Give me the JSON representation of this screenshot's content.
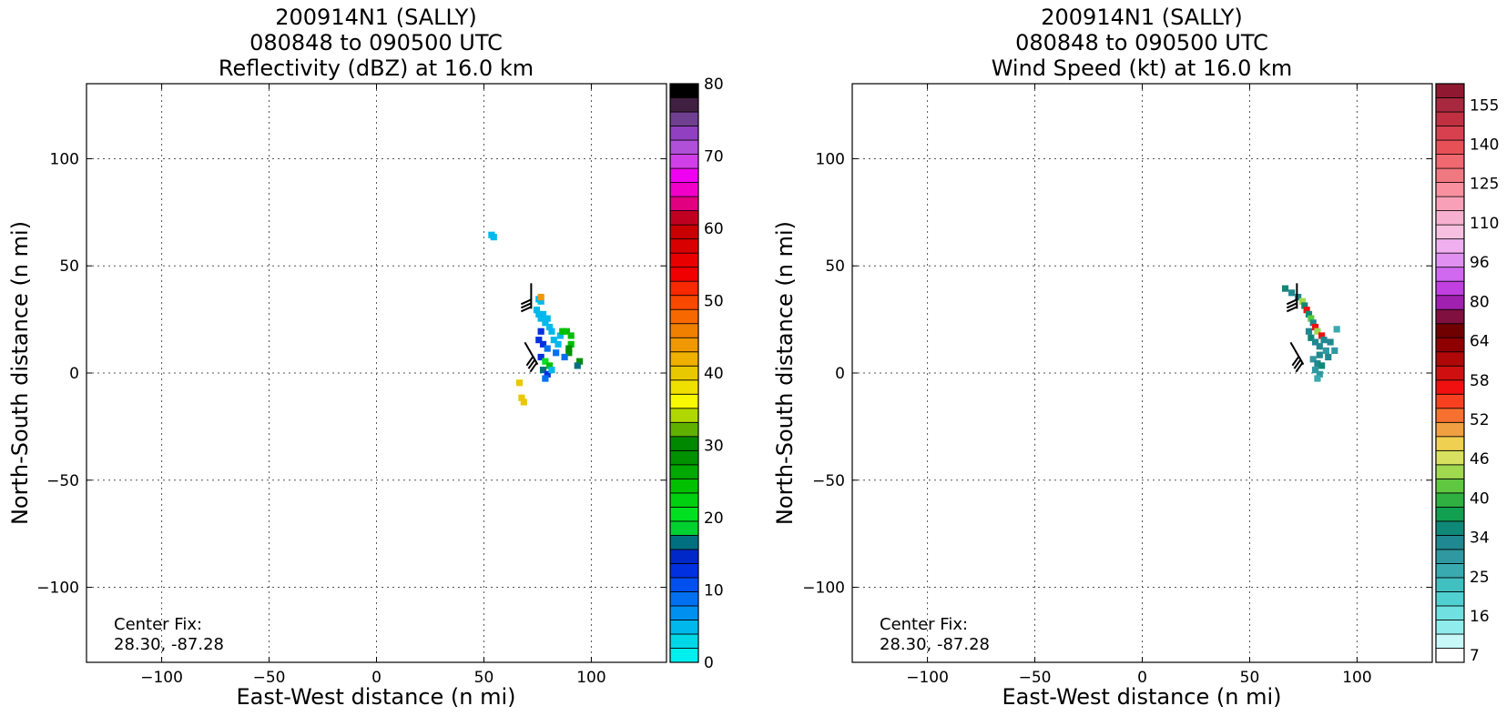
{
  "chart_data": [
    {
      "type": "heatmap",
      "title": [
        "200914N1 (SALLY)",
        "080848 to 090500 UTC",
        "Reflectivity (dBZ) at 16.0 km"
      ],
      "xlabel": "East-West distance (n mi)",
      "ylabel": "North-South distance (n mi)",
      "xlim": [
        -135,
        135
      ],
      "ylim": [
        -135,
        135
      ],
      "xticks": [
        -100,
        -50,
        0,
        50,
        100
      ],
      "yticks": [
        -100,
        -50,
        0,
        50,
        100
      ],
      "grid": true,
      "center_fix_label": "Center Fix:",
      "center_fix_value": "28.30, -87.28",
      "colorbar": {
        "ticks": [
          0,
          10,
          20,
          30,
          40,
          50,
          60,
          70,
          80
        ],
        "colors": [
          "#00f0f0",
          "#00d8e8",
          "#00b8ec",
          "#0090f0",
          "#0070f0",
          "#0050f0",
          "#0030e0",
          "#0028c8",
          "#007080",
          "#00d030",
          "#00e020",
          "#00d010",
          "#00c000",
          "#00a800",
          "#009000",
          "#008800",
          "#60b000",
          "#b0d800",
          "#f8f800",
          "#f0e000",
          "#e8c800",
          "#f0b000",
          "#f09800",
          "#f08000",
          "#f86800",
          "#f84800",
          "#f82800",
          "#f00000",
          "#e80000",
          "#d80000",
          "#c80000",
          "#c00020",
          "#e00080",
          "#f000c8",
          "#f000f0",
          "#d040e8",
          "#b050d8",
          "#9040c0",
          "#704090",
          "#402040",
          "#000000"
        ]
      },
      "pixels": [
        {
          "x": 53,
          "y": 65,
          "v": 2
        },
        {
          "x": 54,
          "y": 64,
          "v": 2
        },
        {
          "x": 75,
          "y": 35,
          "v": 2
        },
        {
          "x": 76,
          "y": 34,
          "v": 2
        },
        {
          "x": 76,
          "y": 36,
          "v": 22
        },
        {
          "x": 74,
          "y": 30,
          "v": 2
        },
        {
          "x": 75,
          "y": 28,
          "v": 2
        },
        {
          "x": 76,
          "y": 26,
          "v": 2
        },
        {
          "x": 77,
          "y": 28,
          "v": 2
        },
        {
          "x": 78,
          "y": 24,
          "v": 2
        },
        {
          "x": 79,
          "y": 26,
          "v": 2
        },
        {
          "x": 80,
          "y": 22,
          "v": 2
        },
        {
          "x": 81,
          "y": 20,
          "v": 2
        },
        {
          "x": 76,
          "y": 20,
          "v": 6
        },
        {
          "x": 75,
          "y": 16,
          "v": 6
        },
        {
          "x": 77,
          "y": 14,
          "v": 6
        },
        {
          "x": 79,
          "y": 12,
          "v": 4
        },
        {
          "x": 82,
          "y": 16,
          "v": 2
        },
        {
          "x": 84,
          "y": 14,
          "v": 2
        },
        {
          "x": 85,
          "y": 18,
          "v": 2
        },
        {
          "x": 83,
          "y": 10,
          "v": 4
        },
        {
          "x": 76,
          "y": 8,
          "v": 6
        },
        {
          "x": 78,
          "y": 6,
          "v": 10
        },
        {
          "x": 80,
          "y": 4,
          "v": 12
        },
        {
          "x": 77,
          "y": 2,
          "v": 8
        },
        {
          "x": 79,
          "y": 0,
          "v": 6
        },
        {
          "x": 78,
          "y": -2,
          "v": 4
        },
        {
          "x": 81,
          "y": 2,
          "v": 2
        },
        {
          "x": 86,
          "y": 20,
          "v": 12
        },
        {
          "x": 88,
          "y": 20,
          "v": 12
        },
        {
          "x": 90,
          "y": 18,
          "v": 12
        },
        {
          "x": 90,
          "y": 14,
          "v": 12
        },
        {
          "x": 89,
          "y": 12,
          "v": 14
        },
        {
          "x": 89,
          "y": 10,
          "v": 14
        },
        {
          "x": 87,
          "y": 8,
          "v": 4
        },
        {
          "x": 94,
          "y": 6,
          "v": 14
        },
        {
          "x": 93,
          "y": 4,
          "v": 8
        },
        {
          "x": 67,
          "y": -11,
          "v": 20
        },
        {
          "x": 68,
          "y": -13,
          "v": 20
        },
        {
          "x": 66,
          "y": -4,
          "v": 20
        }
      ],
      "barbs": [
        {
          "x": 72,
          "y": 30,
          "angle": 0,
          "barbs": 3
        },
        {
          "x": 75,
          "y": 4,
          "angle": -30,
          "barbs": 3
        }
      ]
    },
    {
      "type": "heatmap",
      "title": [
        "200914N1 (SALLY)",
        "080848 to 090500 UTC",
        "Wind Speed (kt) at 16.0 km"
      ],
      "xlabel": "East-West distance (n mi)",
      "ylabel": "North-South distance (n mi)",
      "xlim": [
        -135,
        135
      ],
      "ylim": [
        -135,
        135
      ],
      "xticks": [
        -100,
        -50,
        0,
        50,
        100
      ],
      "yticks": [
        -100,
        -50,
        0,
        50,
        100
      ],
      "grid": true,
      "center_fix_label": "Center Fix:",
      "center_fix_value": "28.30, -87.28",
      "colorbar": {
        "ticks": [
          "7",
          "16",
          "25",
          "34",
          "40",
          "46",
          "52",
          "58",
          "64",
          "80",
          "96",
          "110",
          "125",
          "140",
          "155"
        ],
        "colors": [
          "#ffffff",
          "#c8f8f8",
          "#90ecec",
          "#70e0e0",
          "#50d0d0",
          "#40c0c0",
          "#38aab0",
          "#3098a0",
          "#208890",
          "#108878",
          "#10a050",
          "#30b040",
          "#60c840",
          "#a0d850",
          "#d8e060",
          "#f0d050",
          "#f0a040",
          "#f87030",
          "#f84020",
          "#f01010",
          "#d01010",
          "#b00808",
          "#900000",
          "#700000",
          "#801040",
          "#a020b0",
          "#c040e0",
          "#d068f0",
          "#e090f0",
          "#f0b0f0",
          "#f8c0e0",
          "#f8b0d0",
          "#f8a0b8",
          "#f890a0",
          "#f07880",
          "#f06870",
          "#e85058",
          "#d84050",
          "#c03040",
          "#a82840",
          "#901830"
        ]
      },
      "pixels": [
        {
          "x": 66,
          "y": 40,
          "v": 9
        },
        {
          "x": 69,
          "y": 38,
          "v": 8
        },
        {
          "x": 72,
          "y": 36,
          "v": 8
        },
        {
          "x": 74,
          "y": 34,
          "v": 13
        },
        {
          "x": 75,
          "y": 32,
          "v": 9
        },
        {
          "x": 76,
          "y": 30,
          "v": 19
        },
        {
          "x": 77,
          "y": 28,
          "v": 9
        },
        {
          "x": 78,
          "y": 26,
          "v": 12
        },
        {
          "x": 79,
          "y": 24,
          "v": 8
        },
        {
          "x": 80,
          "y": 22,
          "v": 19
        },
        {
          "x": 81,
          "y": 20,
          "v": 13
        },
        {
          "x": 77,
          "y": 20,
          "v": 8
        },
        {
          "x": 78,
          "y": 17,
          "v": 9
        },
        {
          "x": 80,
          "y": 15,
          "v": 8
        },
        {
          "x": 82,
          "y": 13,
          "v": 8
        },
        {
          "x": 83,
          "y": 18,
          "v": 19
        },
        {
          "x": 84,
          "y": 16,
          "v": 8
        },
        {
          "x": 85,
          "y": 11,
          "v": 7
        },
        {
          "x": 82,
          "y": 9,
          "v": 8
        },
        {
          "x": 79,
          "y": 7,
          "v": 7
        },
        {
          "x": 81,
          "y": 5,
          "v": 8
        },
        {
          "x": 83,
          "y": 4,
          "v": 9
        },
        {
          "x": 80,
          "y": 2,
          "v": 7
        },
        {
          "x": 82,
          "y": 0,
          "v": 7
        },
        {
          "x": 81,
          "y": -2,
          "v": 6
        },
        {
          "x": 86,
          "y": 8,
          "v": 8
        },
        {
          "x": 89,
          "y": 11,
          "v": 7
        },
        {
          "x": 90,
          "y": 21,
          "v": 6
        },
        {
          "x": 87,
          "y": 15,
          "v": 8
        }
      ],
      "barbs": [
        {
          "x": 72,
          "y": 30,
          "angle": 0,
          "barbs": 3
        },
        {
          "x": 75,
          "y": 4,
          "angle": -30,
          "barbs": 3
        }
      ]
    }
  ]
}
